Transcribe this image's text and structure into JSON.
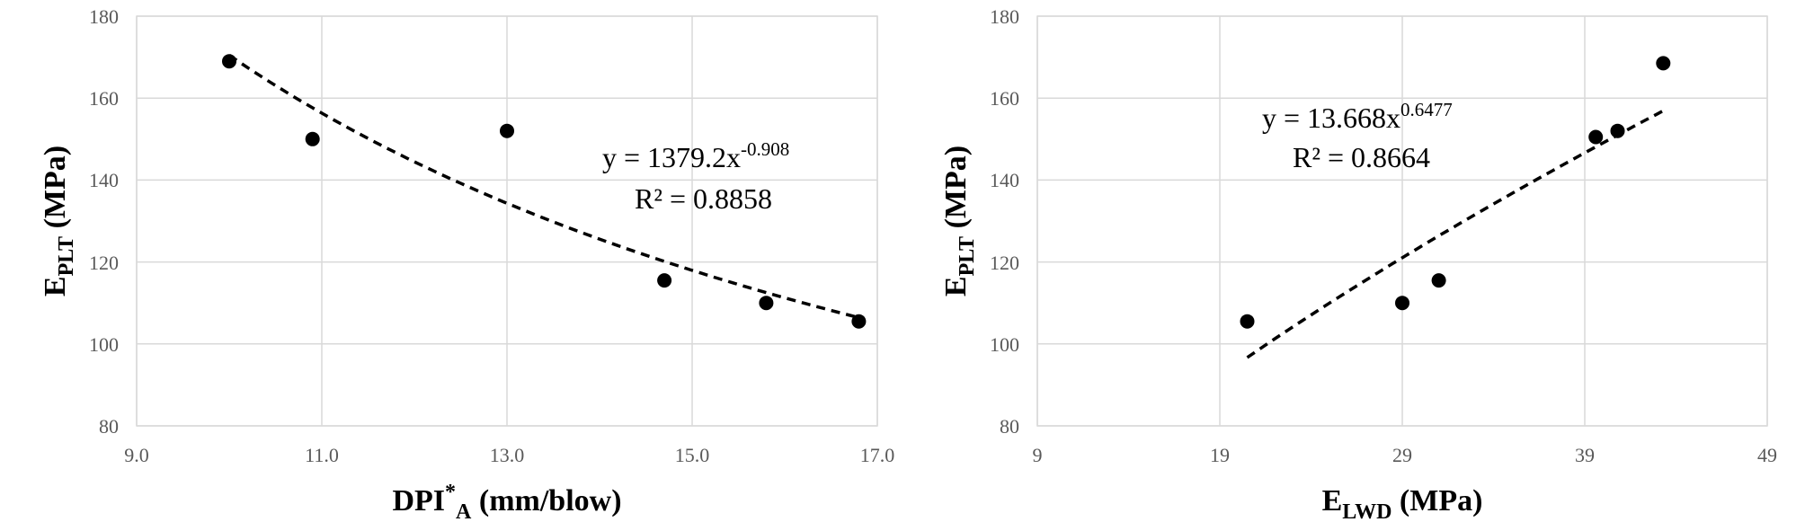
{
  "chart_data": [
    {
      "type": "scatter",
      "xlim": [
        9.0,
        17.0
      ],
      "ylim": [
        80,
        180
      ],
      "x_ticks": [
        "9.0",
        "11.0",
        "13.0",
        "15.0",
        "17.0"
      ],
      "y_ticks": [
        "80",
        "100",
        "120",
        "140",
        "160",
        "180"
      ],
      "xlabel": {
        "main": "DPI",
        "sup": "*",
        "sub": "A",
        "rest": " (mm/blow)"
      },
      "ylabel": {
        "main": "E",
        "sub": "PLT",
        "rest": " (MPa)"
      },
      "series": [
        {
          "x": [
            10.0,
            10.9,
            13.0,
            14.7,
            15.8,
            16.8
          ],
          "y": [
            169,
            150,
            152,
            115.5,
            110,
            105.5
          ]
        }
      ],
      "trendline": {
        "type": "power",
        "a": 1379.2,
        "b": -0.908,
        "x_range": [
          10.0,
          16.8
        ]
      },
      "equation": {
        "prefix": "y = 1379.2x",
        "exponent": "-0.908",
        "r2": "R² = 0.8858"
      },
      "grid": true
    },
    {
      "type": "scatter",
      "xlim": [
        9,
        49
      ],
      "ylim": [
        80,
        180
      ],
      "x_ticks": [
        "9",
        "19",
        "29",
        "39",
        "49"
      ],
      "y_ticks": [
        "80",
        "100",
        "120",
        "140",
        "160",
        "180"
      ],
      "xlabel": {
        "main": "E",
        "sub": "LWD",
        "rest": " (MPa)"
      },
      "ylabel": {
        "main": "E",
        "sub": "PLT",
        "rest": " (MPa)"
      },
      "series": [
        {
          "x": [
            20.5,
            29.0,
            31.0,
            39.6,
            40.8,
            43.3
          ],
          "y": [
            105.5,
            110,
            115.5,
            150.5,
            152,
            168.5
          ]
        }
      ],
      "trendline": {
        "type": "power",
        "a": 13.668,
        "b": 0.6477,
        "x_range": [
          20.5,
          43.3
        ]
      },
      "equation": {
        "prefix": "y = 13.668x",
        "exponent": "0.6477",
        "r2": "R² = 0.8664"
      },
      "grid": true
    }
  ]
}
